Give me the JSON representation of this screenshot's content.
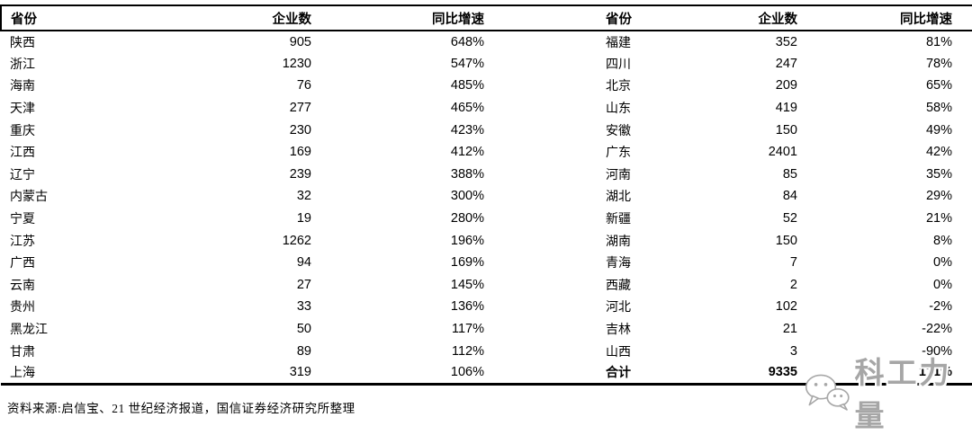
{
  "table": {
    "headers": [
      "省份",
      "企业数",
      "同比增速"
    ],
    "rows_left": [
      [
        "陕西",
        "905",
        "648%"
      ],
      [
        "浙江",
        "1230",
        "547%"
      ],
      [
        "海南",
        "76",
        "485%"
      ],
      [
        "天津",
        "277",
        "465%"
      ],
      [
        "重庆",
        "230",
        "423%"
      ],
      [
        "江西",
        "169",
        "412%"
      ],
      [
        "辽宁",
        "239",
        "388%"
      ],
      [
        "内蒙古",
        "32",
        "300%"
      ],
      [
        "宁夏",
        "19",
        "280%"
      ],
      [
        "江苏",
        "1262",
        "196%"
      ],
      [
        "广西",
        "94",
        "169%"
      ],
      [
        "云南",
        "27",
        "145%"
      ],
      [
        "贵州",
        "33",
        "136%"
      ],
      [
        "黑龙江",
        "50",
        "117%"
      ],
      [
        "甘肃",
        "89",
        "112%"
      ],
      [
        "上海",
        "319",
        "106%"
      ]
    ],
    "rows_right": [
      [
        "福建",
        "352",
        "81%"
      ],
      [
        "四川",
        "247",
        "78%"
      ],
      [
        "北京",
        "209",
        "65%"
      ],
      [
        "山东",
        "419",
        "58%"
      ],
      [
        "安徽",
        "150",
        "49%"
      ],
      [
        "广东",
        "2401",
        "42%"
      ],
      [
        "河南",
        "85",
        "35%"
      ],
      [
        "湖北",
        "84",
        "29%"
      ],
      [
        "新疆",
        "52",
        "21%"
      ],
      [
        "湖南",
        "150",
        "8%"
      ],
      [
        "青海",
        "7",
        "0%"
      ],
      [
        "西藏",
        "2",
        "0%"
      ],
      [
        "河北",
        "102",
        "-2%"
      ],
      [
        "吉林",
        "21",
        "-22%"
      ],
      [
        "山西",
        "3",
        "-90%"
      ],
      [
        "合计",
        "9335",
        "121%"
      ]
    ]
  },
  "footer": {
    "source_text": "资料来源:启信宝、21 世纪经济报道，国信证券经济研究所整理"
  },
  "watermark": {
    "text": "科工力量",
    "color": "#a6a6a6"
  }
}
